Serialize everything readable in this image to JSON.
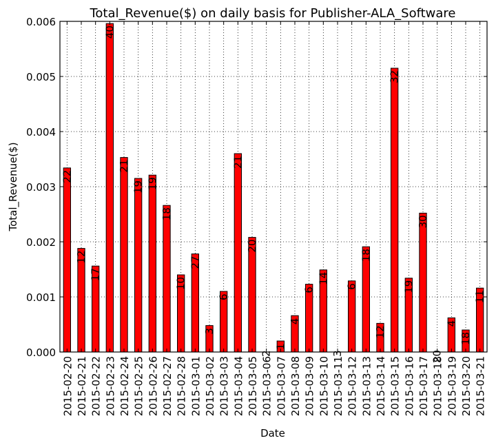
{
  "chart_data": {
    "type": "bar",
    "title": "Total_Revenue($) on daily basis for Publisher-ALA_Software",
    "xlabel": "Date",
    "ylabel": "Total_Revenue($)",
    "ylim": [
      0,
      0.006
    ],
    "yticks": [
      "0.000",
      "0.001",
      "0.002",
      "0.003",
      "0.004",
      "0.005",
      "0.006"
    ],
    "grid": true,
    "bar_color": "#ff0000",
    "categories": [
      "2015-02-20",
      "2015-02-21",
      "2015-02-22",
      "2015-02-23",
      "2015-02-24",
      "2015-02-25",
      "2015-02-26",
      "2015-02-27",
      "2015-02-28",
      "2015-03-01",
      "2015-03-02",
      "2015-03-03",
      "2015-03-04",
      "2015-03-05",
      "2015-03-06",
      "2015-03-07",
      "2015-03-08",
      "2015-03-09",
      "2015-03-10",
      "2015-03-11",
      "2015-03-12",
      "2015-03-13",
      "2015-03-14",
      "2015-03-15",
      "2015-03-16",
      "2015-03-17",
      "2015-03-18",
      "2015-03-19",
      "2015-03-20",
      "2015-03-21"
    ],
    "values": [
      0.00334,
      0.00188,
      0.00156,
      0.00596,
      0.00353,
      0.00315,
      0.00321,
      0.00266,
      0.0014,
      0.00178,
      0.00048,
      0.0011,
      0.0036,
      0.00208,
      0.0,
      0.0002,
      0.00066,
      0.00123,
      0.00149,
      0.0,
      0.00129,
      0.00191,
      0.00052,
      0.00515,
      0.00134,
      0.00252,
      0.0,
      0.00062,
      0.0004,
      0.00116
    ],
    "bar_labels": [
      "22",
      "12",
      "17",
      "40",
      "21",
      "19",
      "19",
      "18",
      "10",
      "27",
      "3",
      "6",
      "21",
      "20",
      "2",
      "1",
      "4",
      "6",
      "14",
      "3",
      "6",
      "18",
      "12",
      "32",
      "19",
      "30",
      "20",
      "4",
      "18",
      "11"
    ]
  }
}
